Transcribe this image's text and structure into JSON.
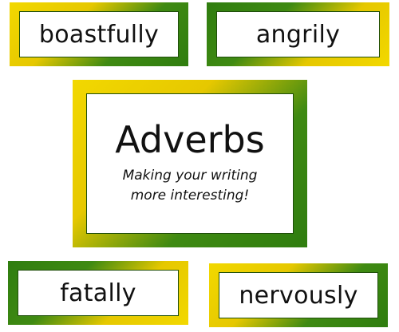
{
  "cards": {
    "top_left": "boastfully",
    "top_right": "angrily",
    "bottom_left": "fatally",
    "bottom_right": "nervously"
  },
  "center": {
    "title": "Adverbs",
    "subtitle_line1": "Making your writing",
    "subtitle_line2": "more interesting!"
  },
  "colors": {
    "frame_yellow": "#f2d800",
    "frame_green": "#2f7d0f",
    "text": "#111111",
    "background": "#ffffff"
  }
}
